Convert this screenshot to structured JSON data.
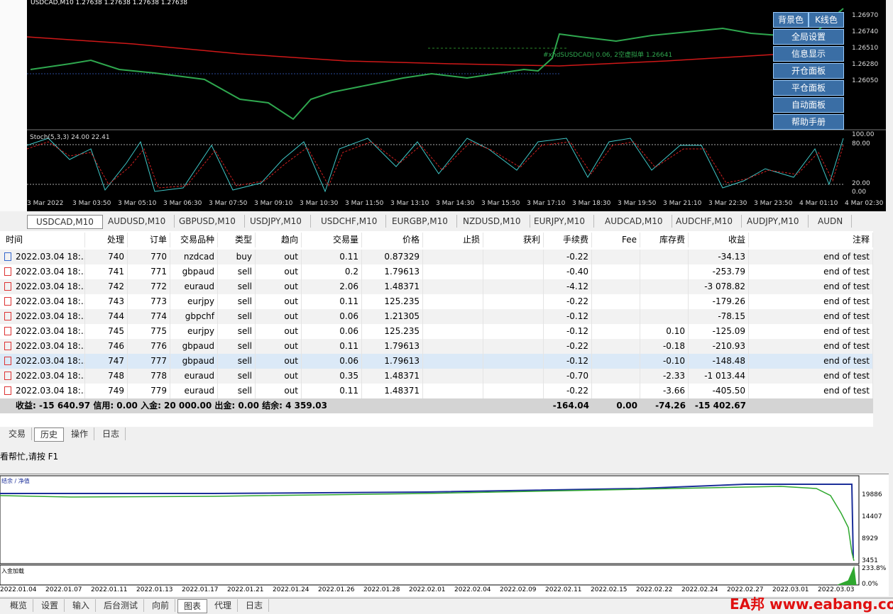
{
  "chart_window": {
    "title": "USDCAD,M10  1.27638 1.27638 1.27638 1.27638",
    "price_ticks": [
      "1.26970",
      "1.26740",
      "1.26510",
      "1.26280",
      "1.26050"
    ],
    "trade_label": "#xhdSUSDCAD| 0.06, 2空虚拟单 1.26641",
    "buttons": [
      "背景色",
      "K线色",
      "全局设置",
      "信息显示",
      "开仓面板",
      "平仓面板",
      "自动面板",
      "帮助手册"
    ],
    "stoch_title": "Stoch(5,3,3) 24.00 22.41",
    "stoch_ticks": [
      "100.00",
      "80.00",
      "20.00",
      "0.00"
    ],
    "time_labels": [
      "3 Mar 2022",
      "3 Mar 03:50",
      "3 Mar 05:10",
      "3 Mar 06:30",
      "3 Mar 07:50",
      "3 Mar 09:10",
      "3 Mar 10:30",
      "3 Mar 11:50",
      "3 Mar 13:10",
      "3 Mar 14:30",
      "3 Mar 15:50",
      "3 Mar 17:10",
      "3 Mar 18:30",
      "3 Mar 19:50",
      "3 Mar 21:10",
      "3 Mar 22:30",
      "3 Mar 23:50",
      "4 Mar 01:10",
      "4 Mar 02:30"
    ]
  },
  "symbol_tabs": [
    "USDCAD,M10",
    "AUDUSD,M10",
    "GBPUSD,M10",
    "USDJPY,M10",
    "USDCHF,M10",
    "EURGBP,M10",
    "NZDUSD,M10",
    "EURJPY,M10",
    "AUDCAD,M10",
    "AUDCHF,M10",
    "AUDJPY,M10",
    "AUDN"
  ],
  "table": {
    "headers": [
      "时间",
      "处理",
      "订单",
      "交易品种",
      "类型",
      "趋向",
      "交易量",
      "价格",
      "止损",
      "获利",
      "手续费",
      "Fee",
      "库存费",
      "收益",
      "注释"
    ],
    "rows": [
      [
        "2022.03.04 18:...",
        "740",
        "770",
        "nzdcad",
        "buy",
        "out",
        "0.11",
        "0.87329",
        "",
        "",
        "-0.22",
        "",
        "",
        "-34.13",
        "end of test"
      ],
      [
        "2022.03.04 18:...",
        "741",
        "771",
        "gbpaud",
        "sell",
        "out",
        "0.2",
        "1.79613",
        "",
        "",
        "-0.40",
        "",
        "",
        "-253.79",
        "end of test"
      ],
      [
        "2022.03.04 18:...",
        "742",
        "772",
        "euraud",
        "sell",
        "out",
        "2.06",
        "1.48371",
        "",
        "",
        "-4.12",
        "",
        "",
        "-3 078.82",
        "end of test"
      ],
      [
        "2022.03.04 18:...",
        "743",
        "773",
        "eurjpy",
        "sell",
        "out",
        "0.11",
        "125.235",
        "",
        "",
        "-0.22",
        "",
        "",
        "-179.26",
        "end of test"
      ],
      [
        "2022.03.04 18:...",
        "744",
        "774",
        "gbpchf",
        "sell",
        "out",
        "0.06",
        "1.21305",
        "",
        "",
        "-0.12",
        "",
        "",
        "-78.15",
        "end of test"
      ],
      [
        "2022.03.04 18:...",
        "745",
        "775",
        "eurjpy",
        "sell",
        "out",
        "0.06",
        "125.235",
        "",
        "",
        "-0.12",
        "",
        "0.10",
        "-125.09",
        "end of test"
      ],
      [
        "2022.03.04 18:...",
        "746",
        "776",
        "gbpaud",
        "sell",
        "out",
        "0.11",
        "1.79613",
        "",
        "",
        "-0.22",
        "",
        "-0.18",
        "-210.93",
        "end of test"
      ],
      [
        "2022.03.04 18:...",
        "747",
        "777",
        "gbpaud",
        "sell",
        "out",
        "0.06",
        "1.79613",
        "",
        "",
        "-0.12",
        "",
        "-0.10",
        "-148.48",
        "end of test"
      ],
      [
        "2022.03.04 18:...",
        "748",
        "778",
        "euraud",
        "sell",
        "out",
        "0.35",
        "1.48371",
        "",
        "",
        "-0.70",
        "",
        "-2.33",
        "-1 013.44",
        "end of test"
      ],
      [
        "2022.03.04 18:...",
        "749",
        "779",
        "euraud",
        "sell",
        "out",
        "0.11",
        "1.48371",
        "",
        "",
        "-0.22",
        "",
        "-3.66",
        "-405.50",
        "end of test"
      ]
    ],
    "summary": {
      "text": "收益: -15 640.97  信用: 0.00  入金: 20 000.00  出金: 0.00  结余: 4 359.03",
      "commission": "-164.04",
      "fee": "0.00",
      "swap": "-74.26",
      "profit": "-15 402.67"
    }
  },
  "bottom_tabs": [
    "交易",
    "历史",
    "操作",
    "日志"
  ],
  "status": "看帮忙,请按 F1",
  "equity_chart": {
    "legend": "结余 / 净值",
    "ticks": [
      "19886",
      "14407",
      "8929",
      "3451"
    ],
    "sub_label": "入金加载",
    "sub_ticks": [
      "233.8%",
      "0.0%"
    ],
    "dates": [
      "2022.01.04",
      "2022.01.07",
      "2022.01.11",
      "2022.01.13",
      "2022.01.17",
      "2022.01.21",
      "2022.01.24",
      "2022.01.26",
      "2022.01.28",
      "2022.02.01",
      "2022.02.04",
      "2022.02.09",
      "2022.02.11",
      "2022.02.15",
      "2022.02.22",
      "2022.02.24",
      "2022.02.27",
      "2022.03.01",
      "2022.03.03"
    ]
  },
  "footer_tabs": [
    "概览",
    "设置",
    "输入",
    "后台测试",
    "向前",
    "图表",
    "代理",
    "日志"
  ],
  "watermark": "EA邦 www.eabang.com"
}
